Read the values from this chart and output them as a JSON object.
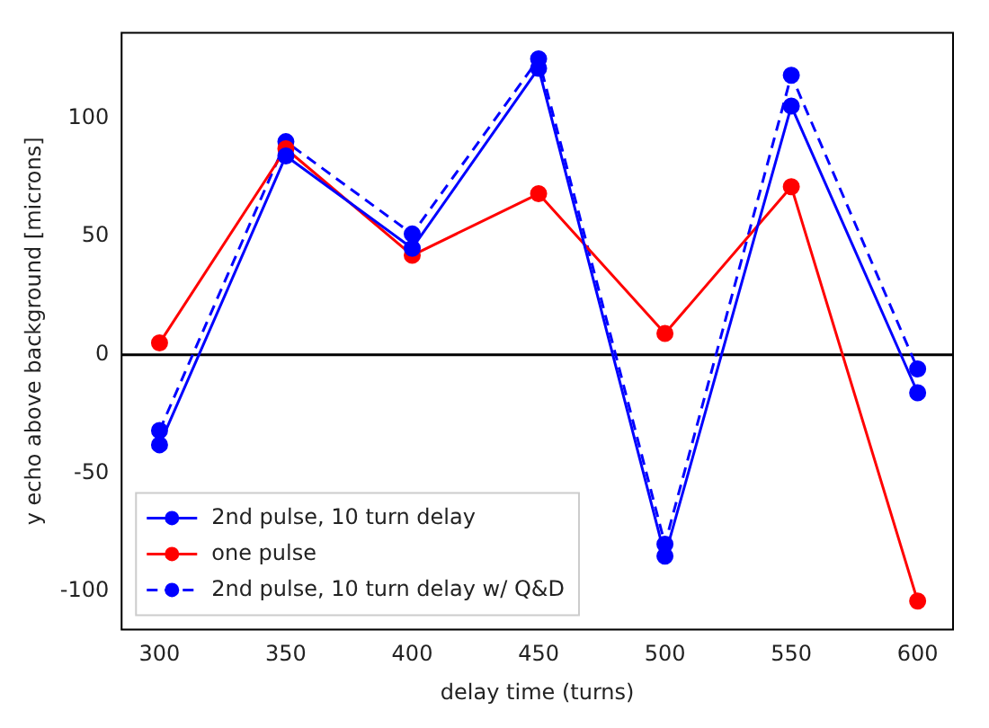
{
  "chart_data": {
    "type": "line",
    "xlabel": "delay time (turns)",
    "ylabel": "y echo above background [microns]",
    "x": [
      300,
      350,
      400,
      450,
      500,
      550,
      600
    ],
    "series": [
      {
        "name": "2nd pulse, 10 turn delay",
        "color": "#0000ff",
        "values": [
          -38,
          84,
          45,
          121,
          -85,
          105,
          -16
        ],
        "line_style": "solid"
      },
      {
        "name": "one pulse",
        "color": "#ff0000",
        "values": [
          5,
          87,
          42,
          68,
          9,
          71,
          -104
        ],
        "line_style": "solid"
      },
      {
        "name": "2nd pulse, 10 turn delay w/ Q&D",
        "color": "#0000ff",
        "values": [
          -32,
          90,
          51,
          125,
          -80,
          118,
          -6
        ],
        "line_style": "dashed"
      }
    ],
    "xlim": [
      285,
      614
    ],
    "ylim": [
      -116,
      136
    ],
    "xticks": [
      300,
      350,
      400,
      450,
      500,
      550,
      600
    ],
    "yticks": [
      -100,
      -50,
      0,
      50,
      100
    ],
    "ref_lines": [
      {
        "axis": "y",
        "value": 0,
        "color": "#000000"
      }
    ],
    "marker": "circle",
    "legend": "bottom left",
    "grid": false
  }
}
